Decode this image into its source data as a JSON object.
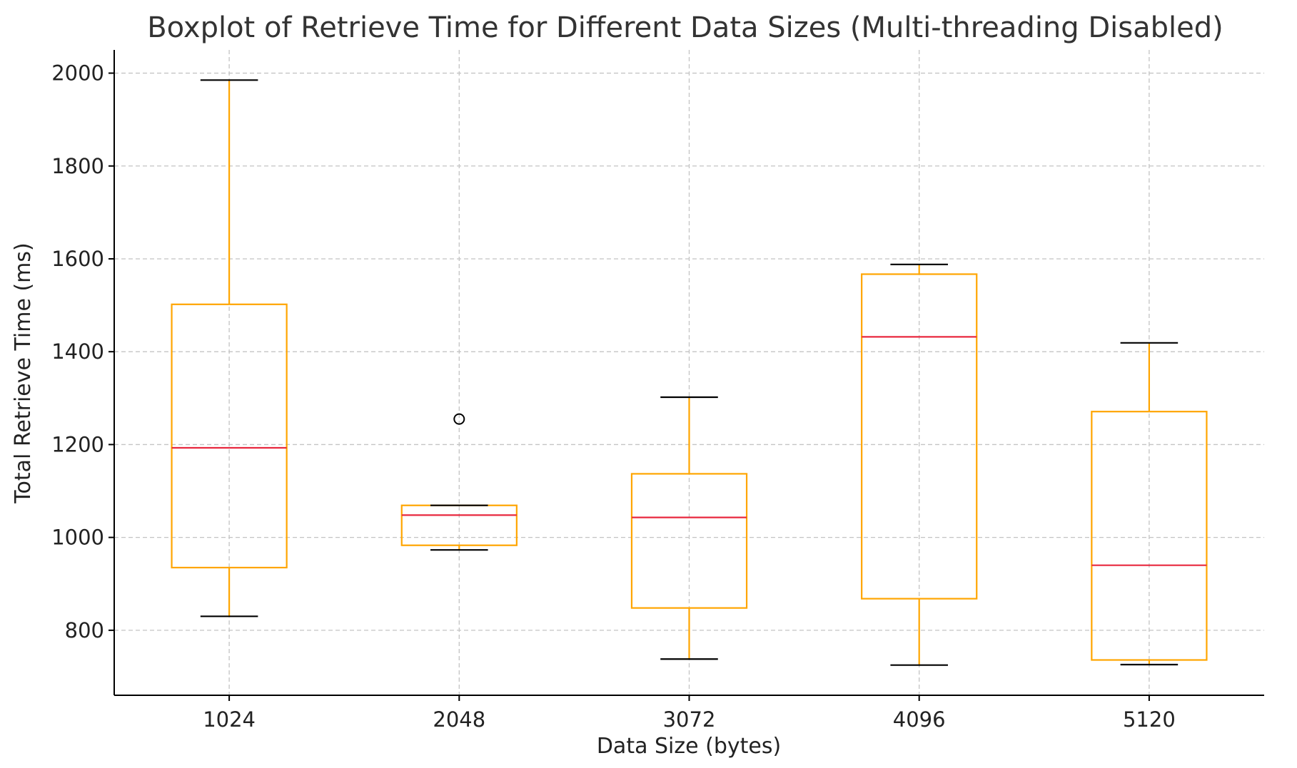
{
  "chart_data": {
    "type": "boxplot",
    "title": "Boxplot of Retrieve Time for Different Data Sizes (Multi-threading Disabled)",
    "xlabel": "Data Size (bytes)",
    "ylabel": "Total Retrieve Time (ms)",
    "categories": [
      "1024",
      "2048",
      "3072",
      "4096",
      "5120"
    ],
    "ylim": [
      660,
      2050
    ],
    "yticks": [
      "800",
      "1000",
      "1200",
      "1400",
      "1600",
      "1800",
      "2000"
    ],
    "grid": true,
    "boxes": [
      {
        "category": "1024",
        "whisker_low": 830,
        "q1": 935,
        "median": 1193,
        "q3": 1502,
        "whisker_high": 1985,
        "outliers": []
      },
      {
        "category": "2048",
        "whisker_low": 973,
        "q1": 983,
        "median": 1048,
        "q3": 1069,
        "whisker_high": 1069,
        "outliers": [
          1255
        ]
      },
      {
        "category": "3072",
        "whisker_low": 738,
        "q1": 848,
        "median": 1043,
        "q3": 1137,
        "whisker_high": 1302,
        "outliers": []
      },
      {
        "category": "4096",
        "whisker_low": 725,
        "q1": 868,
        "median": 1432,
        "q3": 1567,
        "whisker_high": 1588,
        "outliers": []
      },
      {
        "category": "5120",
        "whisker_low": 726,
        "q1": 736,
        "median": 940,
        "q3": 1271,
        "whisker_high": 1419,
        "outliers": []
      }
    ],
    "colors": {
      "box": "#FFA500",
      "median": "#E8283F",
      "whisker_cap": "#000000",
      "grid": "#c4c4c4",
      "axis": "#000000"
    }
  }
}
